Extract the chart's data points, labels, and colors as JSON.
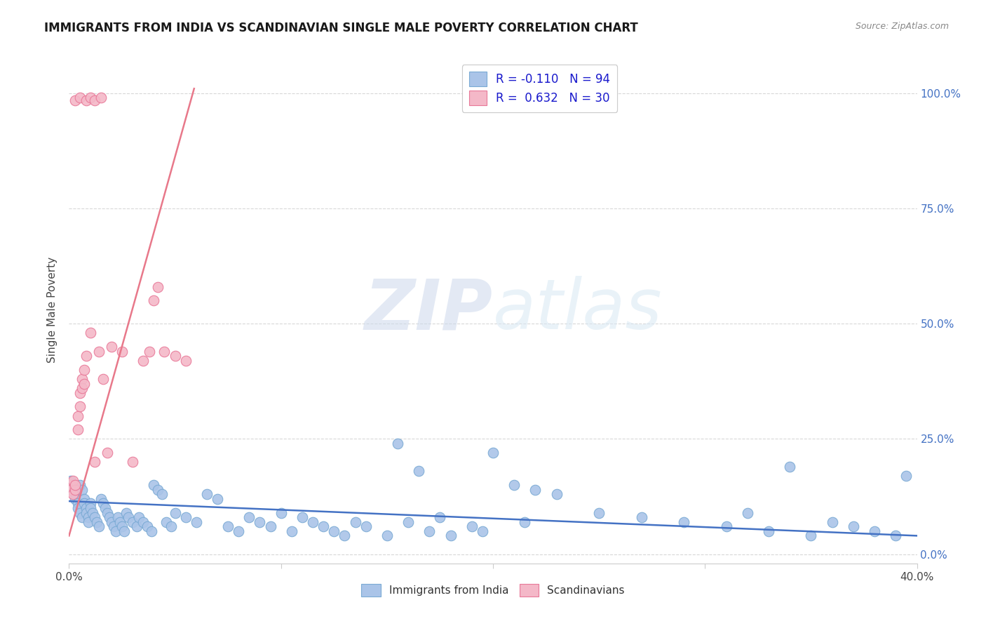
{
  "title": "IMMIGRANTS FROM INDIA VS SCANDINAVIAN SINGLE MALE POVERTY CORRELATION CHART",
  "source": "Source: ZipAtlas.com",
  "ylabel": "Single Male Poverty",
  "ytick_vals": [
    0.0,
    0.25,
    0.5,
    0.75,
    1.0
  ],
  "ytick_labels": [
    "0.0%",
    "25.0%",
    "50.0%",
    "75.0%",
    "100.0%"
  ],
  "xlim": [
    0.0,
    0.4
  ],
  "ylim": [
    -0.02,
    1.08
  ],
  "india_color": "#aac4e8",
  "india_edge": "#7aaad4",
  "scand_color": "#f4b8c8",
  "scand_edge": "#e87898",
  "india_R": -0.11,
  "india_N": 94,
  "scand_R": 0.632,
  "scand_N": 30,
  "india_line_color": "#4472c4",
  "scand_line_color": "#e8788a",
  "watermark_color": "#ccdcf0",
  "legend_india_label": "Immigrants from India",
  "legend_scand_label": "Scandinavians",
  "background_color": "#ffffff",
  "grid_color": "#d8d8d8",
  "india_points_x": [
    0.001,
    0.002,
    0.002,
    0.003,
    0.003,
    0.004,
    0.004,
    0.005,
    0.005,
    0.006,
    0.006,
    0.007,
    0.007,
    0.008,
    0.008,
    0.009,
    0.009,
    0.01,
    0.01,
    0.011,
    0.012,
    0.013,
    0.014,
    0.015,
    0.016,
    0.017,
    0.018,
    0.019,
    0.02,
    0.021,
    0.022,
    0.023,
    0.024,
    0.025,
    0.026,
    0.027,
    0.028,
    0.03,
    0.032,
    0.033,
    0.035,
    0.037,
    0.039,
    0.04,
    0.042,
    0.044,
    0.046,
    0.048,
    0.05,
    0.055,
    0.06,
    0.065,
    0.07,
    0.075,
    0.08,
    0.085,
    0.09,
    0.095,
    0.1,
    0.105,
    0.11,
    0.115,
    0.12,
    0.125,
    0.13,
    0.135,
    0.14,
    0.15,
    0.16,
    0.17,
    0.18,
    0.19,
    0.2,
    0.21,
    0.22,
    0.23,
    0.25,
    0.27,
    0.29,
    0.31,
    0.33,
    0.35,
    0.36,
    0.37,
    0.38,
    0.39,
    0.155,
    0.175,
    0.195,
    0.215,
    0.165,
    0.32,
    0.34,
    0.395
  ],
  "india_points_y": [
    0.16,
    0.15,
    0.14,
    0.13,
    0.12,
    0.11,
    0.1,
    0.09,
    0.15,
    0.14,
    0.08,
    0.12,
    0.11,
    0.1,
    0.09,
    0.08,
    0.07,
    0.11,
    0.1,
    0.09,
    0.08,
    0.07,
    0.06,
    0.12,
    0.11,
    0.1,
    0.09,
    0.08,
    0.07,
    0.06,
    0.05,
    0.08,
    0.07,
    0.06,
    0.05,
    0.09,
    0.08,
    0.07,
    0.06,
    0.08,
    0.07,
    0.06,
    0.05,
    0.15,
    0.14,
    0.13,
    0.07,
    0.06,
    0.09,
    0.08,
    0.07,
    0.13,
    0.12,
    0.06,
    0.05,
    0.08,
    0.07,
    0.06,
    0.09,
    0.05,
    0.08,
    0.07,
    0.06,
    0.05,
    0.04,
    0.07,
    0.06,
    0.04,
    0.07,
    0.05,
    0.04,
    0.06,
    0.22,
    0.15,
    0.14,
    0.13,
    0.09,
    0.08,
    0.07,
    0.06,
    0.05,
    0.04,
    0.07,
    0.06,
    0.05,
    0.04,
    0.24,
    0.08,
    0.05,
    0.07,
    0.18,
    0.09,
    0.19,
    0.17
  ],
  "scand_points_x": [
    0.001,
    0.001,
    0.002,
    0.002,
    0.003,
    0.003,
    0.004,
    0.004,
    0.005,
    0.005,
    0.006,
    0.006,
    0.007,
    0.007,
    0.008,
    0.01,
    0.012,
    0.014,
    0.016,
    0.018,
    0.02,
    0.025,
    0.03,
    0.035,
    0.038,
    0.04,
    0.042,
    0.045,
    0.05,
    0.055
  ],
  "scand_points_y": [
    0.15,
    0.14,
    0.16,
    0.13,
    0.14,
    0.15,
    0.27,
    0.3,
    0.35,
    0.32,
    0.38,
    0.36,
    0.4,
    0.37,
    0.43,
    0.48,
    0.2,
    0.44,
    0.38,
    0.22,
    0.45,
    0.44,
    0.2,
    0.42,
    0.44,
    0.55,
    0.58,
    0.44,
    0.43,
    0.42
  ],
  "scand_top_x": [
    0.003,
    0.005,
    0.008,
    0.01,
    0.012,
    0.015
  ],
  "scand_top_y": [
    0.985,
    0.99,
    0.985,
    0.99,
    0.985,
    0.99
  ],
  "scand_line_x0": 0.0,
  "scand_line_y0": 0.04,
  "scand_line_x1": 0.059,
  "scand_line_y1": 1.01,
  "india_line_x0": 0.0,
  "india_line_y0": 0.115,
  "india_line_x1": 0.4,
  "india_line_y1": 0.04
}
